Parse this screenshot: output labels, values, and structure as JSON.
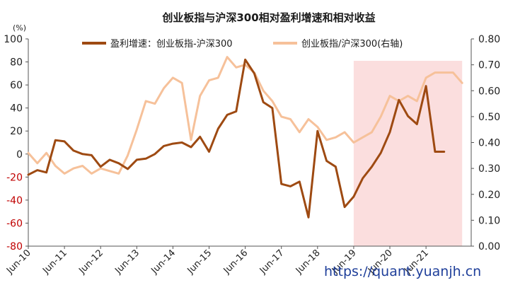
{
  "chart_data": {
    "type": "line",
    "title": "创业板指与沪深300相对盈利增速和相对收益",
    "unit_label": "(%)",
    "legend": {
      "placement": "top-center"
    },
    "x_ticks": [
      "Jun-10",
      "Jun-11",
      "Jun-12",
      "Jun-13",
      "Jun-14",
      "Jun-15",
      "Jun-16",
      "Jun-17",
      "Jun-18",
      "Jun-19",
      "Jun-20",
      "Jun-21"
    ],
    "x_range": [
      "Jun-10",
      "Sep-22"
    ],
    "y_left": {
      "min": -80,
      "max": 100,
      "step": 20
    },
    "y_right": {
      "min": 0.0,
      "max": 0.8,
      "step": 0.1,
      "label": "右轴"
    },
    "left_tick_labels": [
      "-80",
      "-60",
      "-40",
      "-20",
      "0",
      "20",
      "40",
      "60",
      "80",
      "100"
    ],
    "right_tick_labels": [
      "0.00",
      "0.10",
      "0.20",
      "0.30",
      "0.40",
      "0.50",
      "0.60",
      "0.70",
      "0.80"
    ],
    "highlight_region": {
      "from": "Jun-19",
      "to": "Jun-22",
      "color": "#fbdede"
    },
    "series": [
      {
        "name": "盈利增速：创业板指-沪深300",
        "axis": "left",
        "color": "#9e4a12",
        "x": [
          "2010-06",
          "2010-09",
          "2010-12",
          "2011-03",
          "2011-06",
          "2011-09",
          "2011-12",
          "2012-03",
          "2012-06",
          "2012-09",
          "2012-12",
          "2013-03",
          "2013-06",
          "2013-09",
          "2013-12",
          "2014-03",
          "2014-06",
          "2014-09",
          "2014-12",
          "2015-03",
          "2015-06",
          "2015-09",
          "2015-12",
          "2016-03",
          "2016-06",
          "2016-09",
          "2016-12",
          "2017-03",
          "2017-06",
          "2017-09",
          "2017-12",
          "2018-03",
          "2018-06",
          "2018-09",
          "2018-12",
          "2019-03",
          "2019-06",
          "2019-09",
          "2019-12",
          "2020-03",
          "2020-06",
          "2020-09",
          "2020-12",
          "2021-03",
          "2021-06",
          "2021-09",
          "2021-12"
        ],
        "y": [
          -18,
          -14,
          -16,
          12,
          11,
          3,
          0,
          -1,
          -11,
          -5,
          -8,
          -13,
          -5,
          -4,
          0,
          7,
          9,
          10,
          6,
          15,
          2,
          22,
          34,
          37,
          82,
          70,
          45,
          40,
          -26,
          -28,
          -24,
          -55,
          20,
          -6,
          -11,
          -46,
          -37,
          -21,
          -11,
          1,
          19,
          47,
          33,
          26,
          59,
          2,
          2
        ]
      },
      {
        "name": "创业板指/沪深300(右轴)",
        "axis": "right",
        "color": "#f6c19a",
        "x": [
          "2010-06",
          "2010-09",
          "2010-12",
          "2011-03",
          "2011-06",
          "2011-09",
          "2011-12",
          "2012-03",
          "2012-06",
          "2012-09",
          "2012-12",
          "2013-03",
          "2013-06",
          "2013-09",
          "2013-12",
          "2014-03",
          "2014-06",
          "2014-09",
          "2014-12",
          "2015-03",
          "2015-06",
          "2015-09",
          "2015-12",
          "2016-03",
          "2016-06",
          "2016-09",
          "2016-12",
          "2017-03",
          "2017-06",
          "2017-09",
          "2017-12",
          "2018-03",
          "2018-06",
          "2018-09",
          "2018-12",
          "2019-03",
          "2019-06",
          "2019-09",
          "2019-12",
          "2020-03",
          "2020-06",
          "2020-09",
          "2020-12",
          "2021-03",
          "2021-06",
          "2021-09",
          "2021-12",
          "2022-03",
          "2022-06"
        ],
        "y": [
          0.36,
          0.32,
          0.36,
          0.31,
          0.28,
          0.3,
          0.31,
          0.28,
          0.3,
          0.29,
          0.28,
          0.35,
          0.45,
          0.56,
          0.55,
          0.61,
          0.65,
          0.63,
          0.41,
          0.58,
          0.64,
          0.65,
          0.73,
          0.69,
          0.7,
          0.67,
          0.6,
          0.56,
          0.5,
          0.49,
          0.44,
          0.49,
          0.46,
          0.41,
          0.42,
          0.44,
          0.4,
          0.42,
          0.44,
          0.5,
          0.58,
          0.56,
          0.58,
          0.56,
          0.65,
          0.67,
          0.67,
          0.67,
          0.63
        ]
      }
    ]
  },
  "watermark": "https://quant.yuanjh.cn"
}
